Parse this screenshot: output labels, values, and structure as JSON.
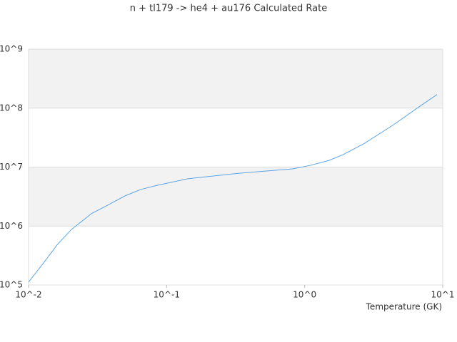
{
  "chart_data": {
    "type": "line",
    "title": "n + tl179 -> he4 + au176 Calculated Rate",
    "x_label": "Temperature (GK)",
    "xscale": "log",
    "yscale": "log",
    "xlim": [
      0.01,
      10
    ],
    "ylim": [
      100000,
      1000000000
    ],
    "xticks": [
      {
        "value": 0.01,
        "label": "10^-2"
      },
      {
        "value": 0.1,
        "label": "10^-1"
      },
      {
        "value": 1,
        "label": "10^0"
      },
      {
        "value": 10,
        "label": "10^1"
      }
    ],
    "yticks": [
      {
        "value": 100000,
        "label": "10^5"
      },
      {
        "value": 1000000,
        "label": "10^6"
      },
      {
        "value": 10000000,
        "label": "10^7"
      },
      {
        "value": 100000000,
        "label": "10^8"
      },
      {
        "value": 1000000000,
        "label": "10^9"
      }
    ],
    "grid": true,
    "x": [
      0.01,
      0.0127,
      0.0161,
      0.0204,
      0.0285,
      0.0371,
      0.0499,
      0.0649,
      0.0853,
      0.141,
      0.221,
      0.316,
      0.509,
      0.82,
      1.1,
      1.49,
      1.89,
      2.7,
      4.35,
      7.0,
      9.1
    ],
    "series": [
      {
        "color": "#5aa5e6",
        "values": [
          112000,
          229000,
          479000,
          871000,
          1620000,
          2240000,
          3240000,
          4170000,
          4900000,
          6310000,
          7080000,
          7760000,
          8510000,
          9330000,
          10700000,
          12900000,
          16200000,
          25100000,
          51300000,
          112000000,
          170000000
        ]
      }
    ]
  }
}
